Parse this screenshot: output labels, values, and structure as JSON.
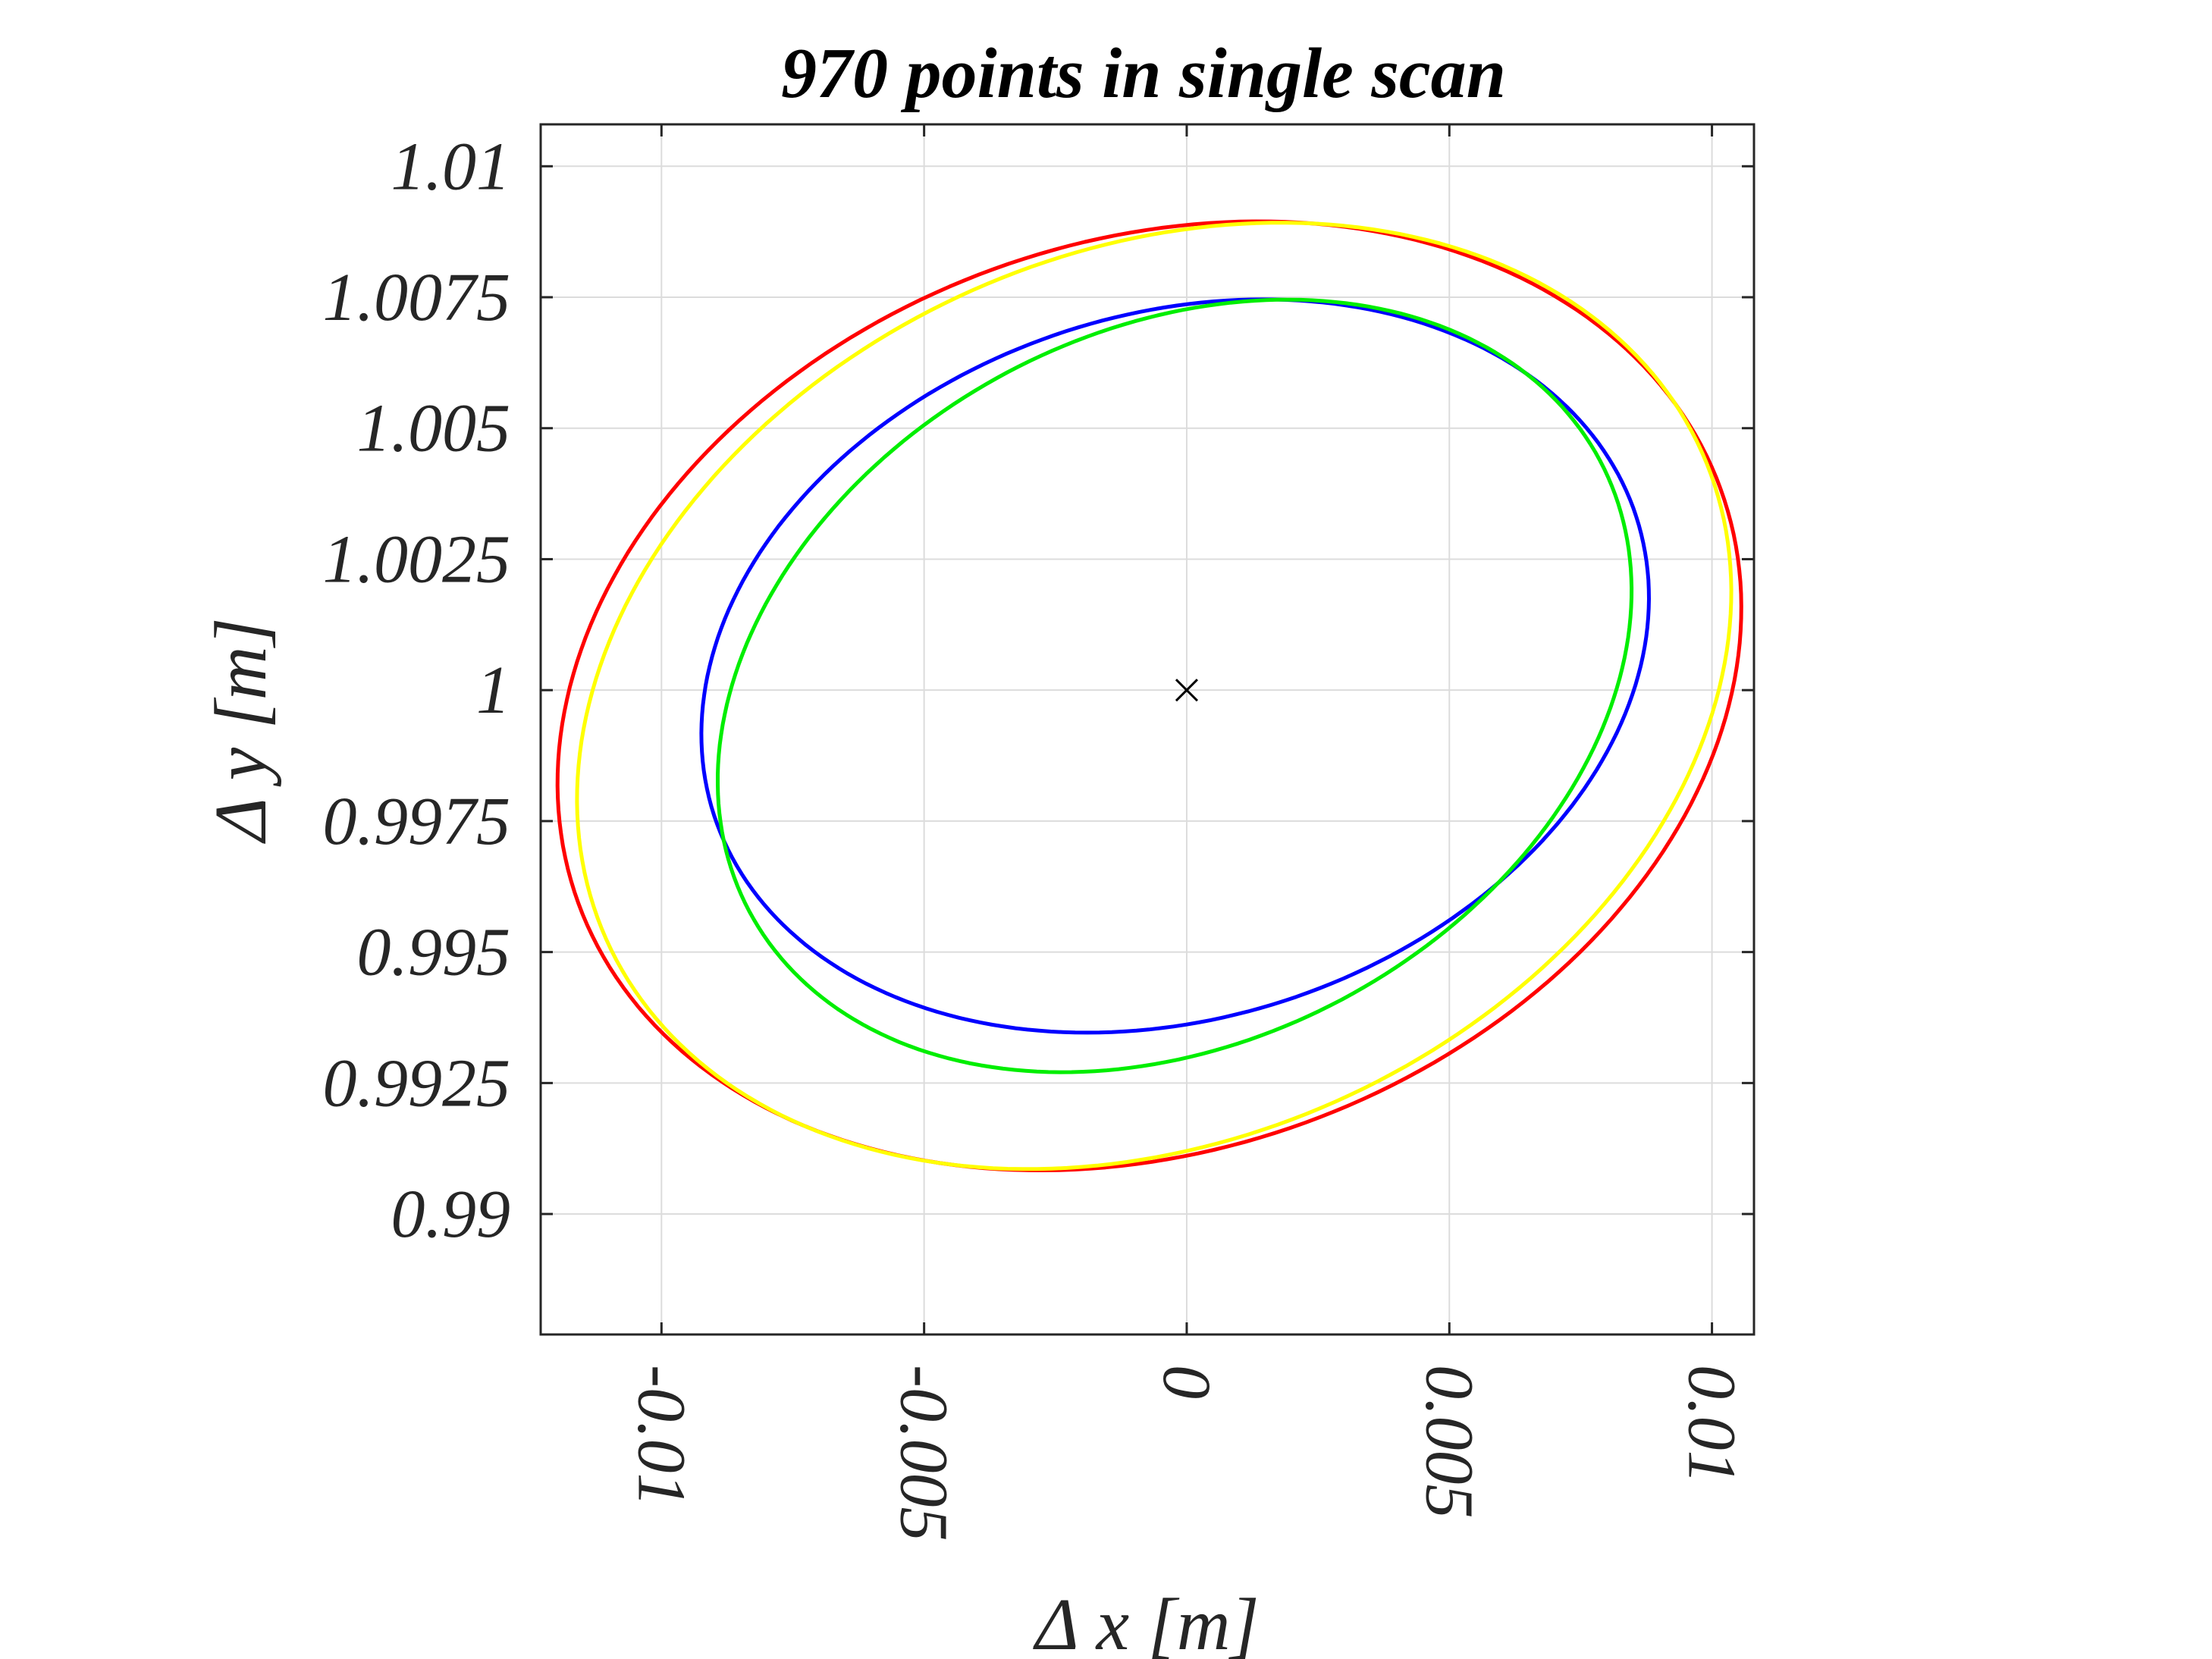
{
  "chart_data": {
    "type": "line",
    "title": "970 points in single scan",
    "xlabel": "Δ x [m]",
    "ylabel": "Δ y [m]",
    "xlim": [
      -0.0123,
      0.0108
    ],
    "ylim": [
      0.9877,
      1.0108
    ],
    "xticks": [
      -0.01,
      -0.005,
      0,
      0.005,
      0.01
    ],
    "xtick_labels": [
      "-0.01",
      "-0.005",
      "0",
      "0.005",
      "0.01"
    ],
    "yticks": [
      0.99,
      0.9925,
      0.995,
      0.9975,
      1,
      1.0025,
      1.005,
      1.0075,
      1.01
    ],
    "ytick_labels": [
      "0.99",
      "0.9925",
      "0.995",
      "0.9975",
      "1",
      "1.0025",
      "1.005",
      "1.0075",
      "1.01"
    ],
    "grid": true,
    "marker": {
      "symbol": "×",
      "x": 0,
      "y": 1,
      "color": "#000000"
    },
    "series": [
      {
        "color": "#ff0000",
        "center": [
          -0.00071,
          0.99989
        ],
        "semi_axes": [
          0.01157,
          0.00867
        ],
        "rotation_deg": 20
      },
      {
        "color": "#ffff00",
        "center": [
          -0.00062,
          0.99989
        ],
        "semi_axes": [
          0.01142,
          0.00848
        ],
        "rotation_deg": 24
      },
      {
        "color": "#0000ff",
        "center": [
          -0.00022,
          1.00046
        ],
        "semi_axes": [
          0.00923,
          0.00672
        ],
        "rotation_deg": 18
      },
      {
        "color": "#00ee00",
        "center": [
          -0.00023,
          1.00008
        ],
        "semi_axes": [
          0.00917,
          0.00678
        ],
        "rotation_deg": 28
      }
    ]
  }
}
